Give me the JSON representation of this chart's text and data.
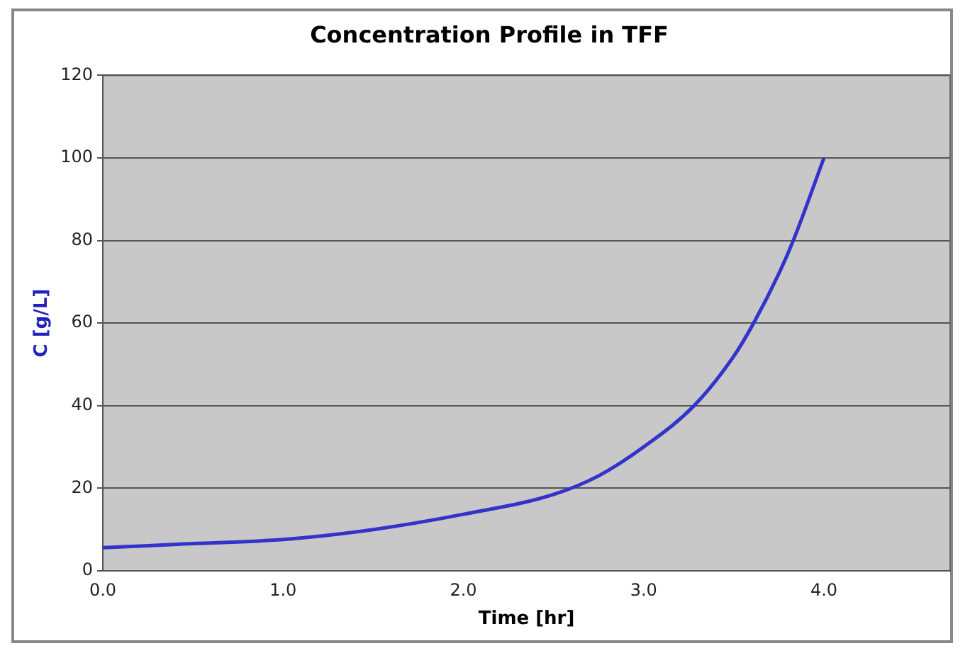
{
  "chart_data": {
    "type": "line",
    "title": "Concentration Profile in TFF",
    "xlabel": "Time [hr]",
    "ylabel": "C [g/L]",
    "x": [
      0,
      0.5,
      1,
      1.5,
      2,
      2.5,
      2.75,
      3,
      3.28,
      3.5,
      3.61,
      3.75,
      3.83,
      4
    ],
    "series": [
      {
        "color": "#3333cc",
        "values": [
          5.6,
          6.6,
          7.6,
          10,
          13.7,
          18.5,
          23,
          30,
          40,
          52,
          60,
          72,
          80,
          100
        ]
      }
    ],
    "xlim": [
      0,
      4.7
    ],
    "xticks": [
      {
        "value": 0,
        "label": "0.0"
      },
      {
        "value": 1,
        "label": "1.0"
      },
      {
        "value": 2,
        "label": "2.0"
      },
      {
        "value": 3,
        "label": "3.0"
      },
      {
        "value": 4,
        "label": "4.0"
      }
    ],
    "ylim": [
      0,
      120
    ],
    "yticks": [
      0,
      20,
      40,
      60,
      80,
      100,
      120
    ],
    "grid": "y",
    "legend": false,
    "marker": "none"
  }
}
